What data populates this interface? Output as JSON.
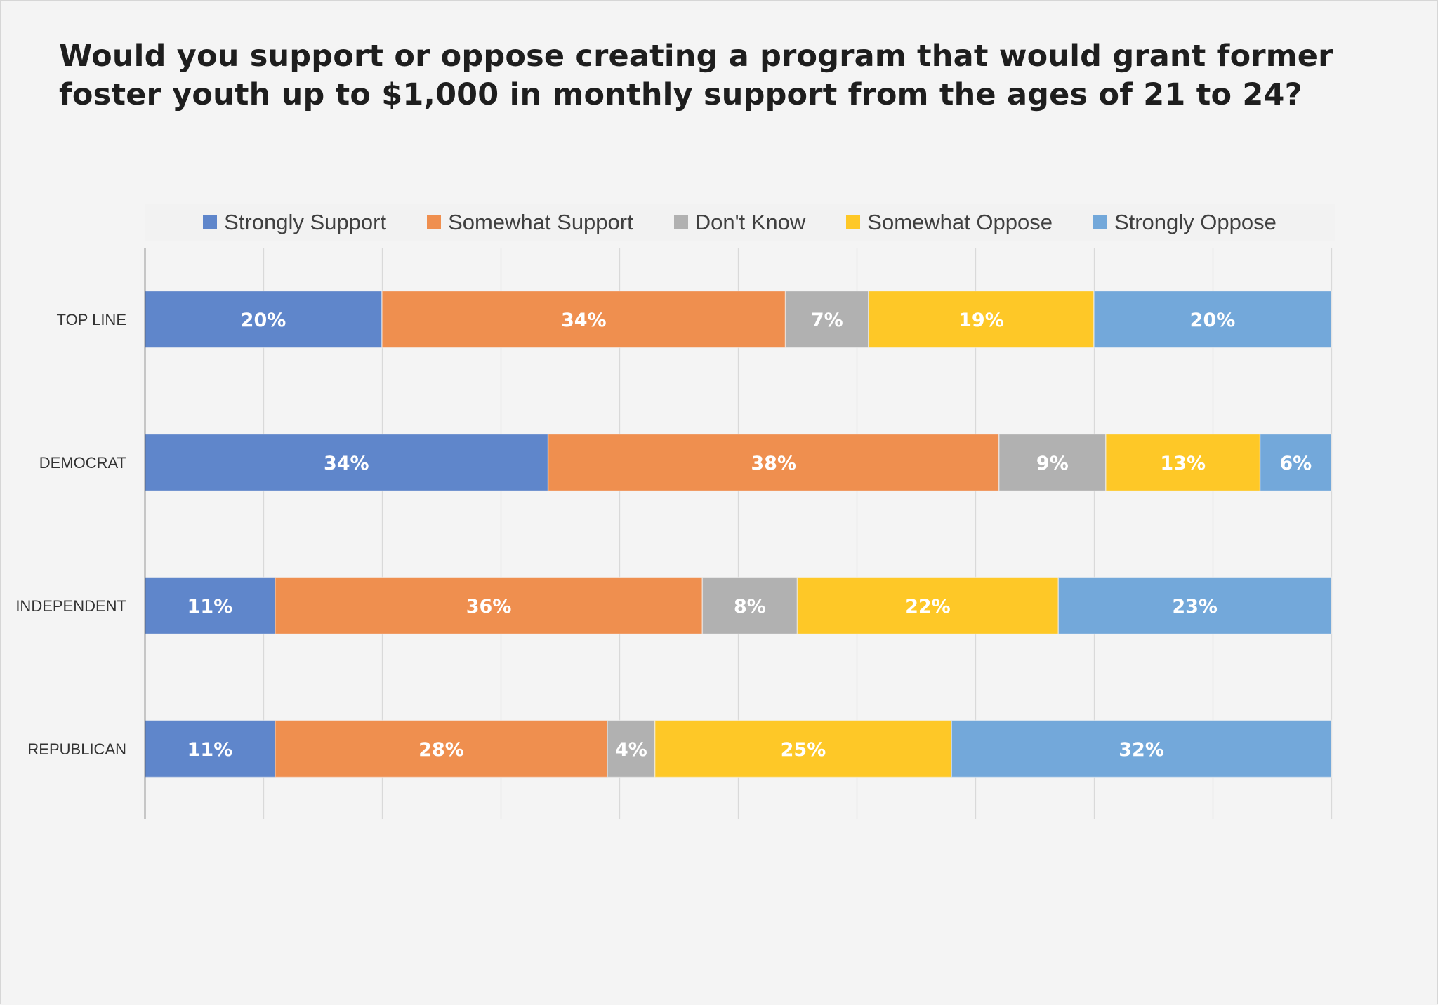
{
  "chart_data": {
    "type": "bar",
    "orientation": "horizontal",
    "stacked": true,
    "normalized_percent": true,
    "title": "Would you support or oppose creating a program that would grant former foster youth up to $1,000 in monthly support from the ages of 21 to 24?",
    "title_lines": [
      "Would you support or oppose creating a program that would grant former",
      "foster youth up to $1,000 in monthly support from the ages of 21 to 24?"
    ],
    "xlabel": "",
    "ylabel": "",
    "xlim": [
      0,
      100
    ],
    "grid": true,
    "grid_step": 10,
    "x_tick_labels_visible": false,
    "legend_position": "top",
    "categories": [
      "TOP LINE",
      "DEMOCRAT",
      "INDEPENDENT",
      "REPUBLICAN"
    ],
    "series": [
      {
        "name": "Strongly Support",
        "color": "#5f86cb",
        "values": [
          20,
          34,
          11,
          11
        ],
        "labels": [
          "20%",
          "34%",
          "11%",
          "11%"
        ]
      },
      {
        "name": "Somewhat Support",
        "color": "#ef8f4f",
        "values": [
          34,
          38,
          36,
          28
        ],
        "labels": [
          "34%",
          "38%",
          "36%",
          "28%"
        ]
      },
      {
        "name": "Don't Know",
        "color": "#b1b1b1",
        "values": [
          7,
          9,
          8,
          4
        ],
        "labels": [
          "7%",
          "9%",
          "8%",
          "4%"
        ]
      },
      {
        "name": "Somewhat Oppose",
        "color": "#fec827",
        "values": [
          19,
          13,
          22,
          25
        ],
        "labels": [
          "19%",
          "13%",
          "22%",
          "25%"
        ]
      },
      {
        "name": "Strongly Oppose",
        "color": "#73a8da",
        "values": [
          20,
          6,
          23,
          32
        ],
        "labels": [
          "20%",
          "6%",
          "23%",
          "32%"
        ]
      }
    ]
  },
  "colors": {
    "background": "#f4f4f4",
    "title_text": "#1e1e1e",
    "axis": "#595959",
    "grid": "#d9d9d9",
    "data_label_text": "#ffffff"
  }
}
